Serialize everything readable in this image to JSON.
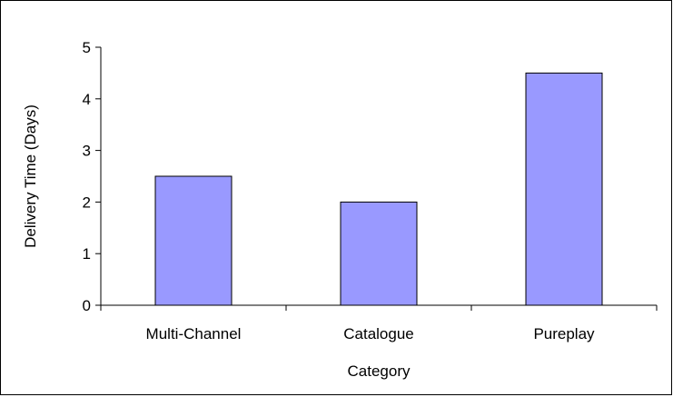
{
  "chart_data": {
    "type": "bar",
    "categories": [
      "Multi-Channel",
      "Catalogue",
      "Pureplay"
    ],
    "values": [
      2.5,
      2,
      4.5
    ],
    "xlabel": "Category",
    "ylabel": "Delivery Time (Days)",
    "ylim": [
      0,
      5
    ],
    "yticks": [
      "0",
      "1",
      "2",
      "3",
      "4",
      "5"
    ],
    "grid": false,
    "legend": "none",
    "colors": {
      "bar_fill": "#9999ff",
      "bar_stroke": "#000000",
      "axis": "#000000"
    }
  }
}
